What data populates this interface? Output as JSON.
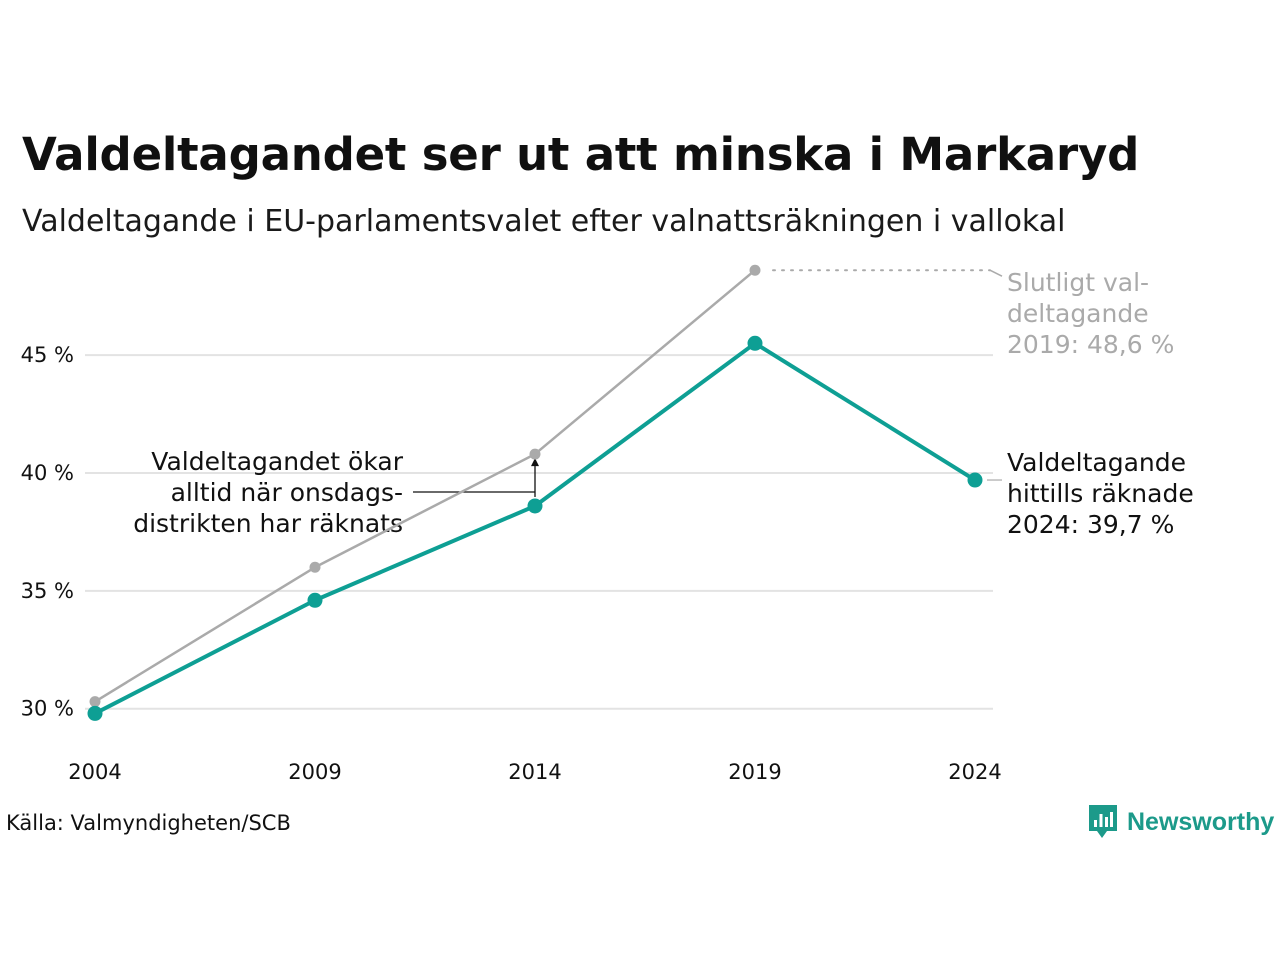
{
  "title": "Valdeltagandet ser ut att minska i Markaryd",
  "subtitle": "Valdeltagande i EU-parlamentsvalet efter valnattsräkningen i vallokal",
  "source": "Källa: Valmyndigheten/SCB",
  "brand": {
    "name": "Newsworthy",
    "icon": "newsworthy-logo-icon",
    "color": "#1c9a8a"
  },
  "chart_data": {
    "type": "line",
    "x": [
      2004,
      2009,
      2014,
      2019,
      2024
    ],
    "x_tick_labels": [
      "2004",
      "2009",
      "2014",
      "2019",
      "2024"
    ],
    "y_ticks": [
      30,
      35,
      40,
      45
    ],
    "y_tick_labels": [
      "30 %",
      "35 %",
      "40 %",
      "45 %"
    ],
    "ylim": [
      29.5,
      49.5
    ],
    "grid": true,
    "series": [
      {
        "key": "final",
        "values": [
          30.3,
          36.0,
          40.8,
          48.6,
          null
        ],
        "color": "#aaaaaa"
      },
      {
        "key": "counted",
        "values": [
          29.8,
          34.6,
          38.6,
          45.5,
          39.7
        ],
        "color": "#0e9f94"
      }
    ],
    "annotations": {
      "final_2019": [
        "Slutligt val-",
        "deltagande",
        "2019: 48,6 %"
      ],
      "counted_2024": [
        "Valdeltagande",
        "hittills räknade",
        "2024: 39,7 %"
      ],
      "wednesday_note": [
        "Valdeltagandet ökar",
        "alltid när onsdags-",
        "distrikten har räknats"
      ]
    }
  }
}
